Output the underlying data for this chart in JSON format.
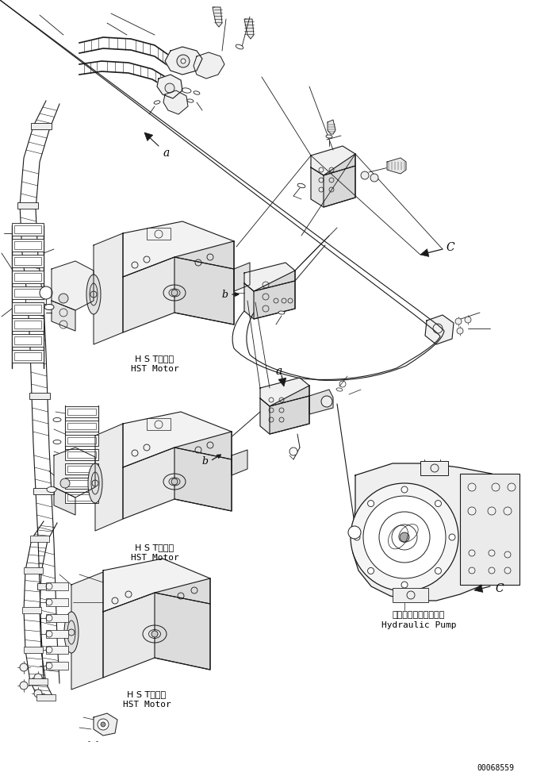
{
  "bg_color": "#ffffff",
  "line_color": "#1a1a1a",
  "fig_width": 6.96,
  "fig_height": 9.79,
  "dpi": 100,
  "part_number": "00068559",
  "labels": {
    "hst_motor_jp1": "H S Tモータ",
    "hst_motor_en1": "HST Motor",
    "hst_motor_jp2": "H S Tモータ",
    "hst_motor_en2": "HST Motor",
    "hydraulic_pump_jp": "ハイドロリックポンプ",
    "hydraulic_pump_en": "Hydraulic Pump",
    "label_a": "a",
    "label_b": "b",
    "label_c": "C"
  },
  "colors": {
    "drawing": "#1a1a1a",
    "text": "#000000"
  }
}
